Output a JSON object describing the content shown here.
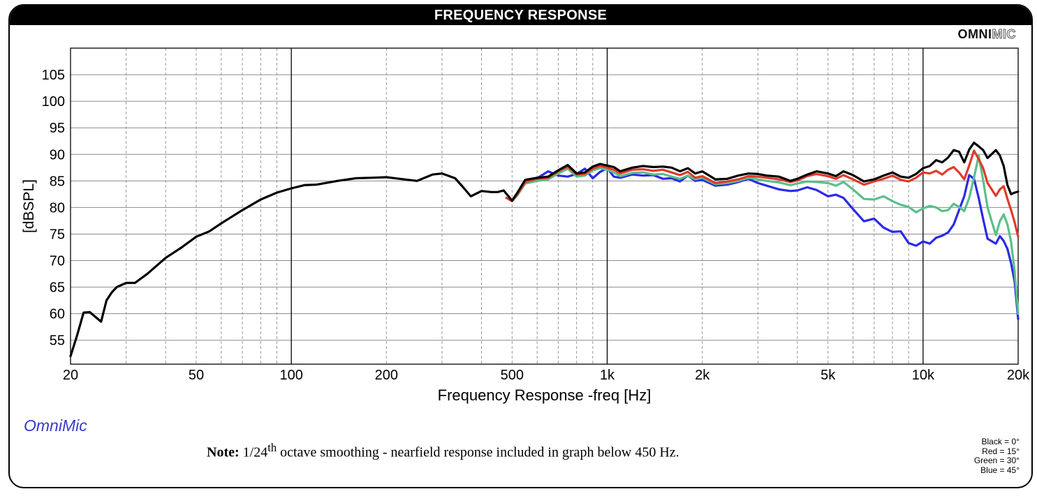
{
  "header": {
    "title": "FREQUENCY RESPONSE"
  },
  "brand": {
    "part1": "OMNI",
    "part2": "MIC"
  },
  "app_name": "OmniMic",
  "note": {
    "label": "Note:",
    "smoothing_pre": "1/24",
    "superscript": "th",
    "text": " octave smoothing - nearfield response included in graph below 450 Hz."
  },
  "legend": [
    {
      "label": "Black = 0°",
      "color": "#000000"
    },
    {
      "label": "Red = 15°",
      "color": "#e03a2a"
    },
    {
      "label": "Green = 30°",
      "color": "#5bbf8a"
    },
    {
      "label": "Blue = 45°",
      "color": "#2a2ae6"
    }
  ],
  "chart_data": {
    "type": "line",
    "xlabel": "Frequency Response -freq [Hz]",
    "ylabel": "[dBSPL]",
    "x_scale": "log",
    "xlim": [
      20,
      20000
    ],
    "ylim": [
      50.5,
      110
    ],
    "x_ticks": [
      20,
      50,
      100,
      200,
      500,
      1000,
      2000,
      5000,
      10000,
      20000
    ],
    "x_tick_labels": [
      "20",
      "50",
      "100",
      "200",
      "500",
      "1k",
      "2k",
      "5k",
      "10k",
      "20k"
    ],
    "y_ticks": [
      55,
      60,
      65,
      70,
      75,
      80,
      85,
      90,
      95,
      100,
      105
    ],
    "y_tick_labels": [
      "55",
      "60",
      "65",
      "70",
      "75",
      "80",
      "85",
      "90",
      "95",
      "100",
      "105"
    ],
    "grid": true,
    "series": [
      {
        "name": "Black = 0°",
        "color": "#000000",
        "x": [
          20,
          21,
          22,
          23,
          25,
          26,
          27,
          28,
          30,
          32,
          35,
          40,
          45,
          50,
          55,
          60,
          70,
          80,
          90,
          100,
          110,
          120,
          140,
          160,
          180,
          200,
          220,
          250,
          280,
          300,
          330,
          350,
          370,
          400,
          430,
          450,
          470,
          500,
          520,
          550,
          600,
          650,
          700,
          750,
          800,
          850,
          900,
          950,
          1000,
          1050,
          1100,
          1200,
          1300,
          1400,
          1500,
          1600,
          1700,
          1800,
          1900,
          2000,
          2200,
          2400,
          2600,
          2800,
          3000,
          3200,
          3500,
          3800,
          4000,
          4300,
          4600,
          5000,
          5300,
          5600,
          6000,
          6500,
          7000,
          7500,
          8000,
          8500,
          9000,
          9500,
          10000,
          10500,
          11000,
          11500,
          12000,
          12500,
          13000,
          13500,
          14000,
          14500,
          15000,
          15500,
          16000,
          17000,
          17500,
          18000,
          18500,
          19000,
          19500,
          20000
        ],
        "y": [
          52,
          56,
          60.2,
          60.3,
          58.5,
          62.5,
          64,
          65,
          65.8,
          65.8,
          67.5,
          70.5,
          72.5,
          74.5,
          75.5,
          77,
          79.5,
          81.5,
          82.8,
          83.6,
          84.2,
          84.3,
          85,
          85.5,
          85.6,
          85.7,
          85.4,
          85,
          86.2,
          86.4,
          85.5,
          83.8,
          82.1,
          83.1,
          82.9,
          82.9,
          83.2,
          81.3,
          82.8,
          85.2,
          85.6,
          85.8,
          87,
          88,
          86.4,
          86.6,
          87.7,
          88.2,
          87.9,
          87.6,
          86.8,
          87.5,
          87.8,
          87.6,
          87.7,
          87.5,
          86.8,
          87.4,
          86.4,
          86.8,
          85.3,
          85.4,
          86,
          86.4,
          86.3,
          86,
          85.8,
          85,
          85.4,
          86.2,
          86.8,
          86.4,
          85.9,
          86.8,
          86.1,
          84.9,
          85.3,
          86,
          86.6,
          85.8,
          85.6,
          86.3,
          87.4,
          87.8,
          88.9,
          88.5,
          89.4,
          90.8,
          90.5,
          88.5,
          90.9,
          92.2,
          91.5,
          90.8,
          89.3,
          90.8,
          89.8,
          87.8,
          84.2,
          82.5,
          82.8,
          83
        ]
      },
      {
        "name": "Red = 15°",
        "color": "#e03a2a",
        "x": [
          480,
          500,
          520,
          550,
          600,
          650,
          700,
          750,
          800,
          850,
          900,
          950,
          1000,
          1050,
          1100,
          1200,
          1300,
          1400,
          1500,
          1600,
          1700,
          1800,
          1900,
          2000,
          2200,
          2400,
          2600,
          2800,
          3000,
          3200,
          3500,
          3800,
          4000,
          4300,
          4600,
          5000,
          5300,
          5600,
          6000,
          6500,
          7000,
          7500,
          8000,
          8500,
          9000,
          9500,
          10000,
          10500,
          11000,
          11500,
          12000,
          12500,
          13000,
          13500,
          14000,
          14500,
          15000,
          15500,
          16000,
          17000,
          17500,
          18000,
          18500,
          19000,
          19500,
          20000
        ],
        "y": [
          81.8,
          81.2,
          82.5,
          84.8,
          85.4,
          85.6,
          86.8,
          87.7,
          86.2,
          86.3,
          87.3,
          87.8,
          87.5,
          87.1,
          86.4,
          87.1,
          87.2,
          86.9,
          87.1,
          86.6,
          86.1,
          86.7,
          85.6,
          85.9,
          84.6,
          84.9,
          85.3,
          85.9,
          85.8,
          85.6,
          85.3,
          84.8,
          85.1,
          85.9,
          86.3,
          85.9,
          85.4,
          86.1,
          85.3,
          84.3,
          84.9,
          85.4,
          86,
          85.2,
          84.9,
          85.6,
          86.6,
          86.4,
          86.9,
          86.2,
          87.1,
          87.6,
          86.6,
          85.3,
          87.9,
          90.7,
          89.1,
          87.4,
          84.6,
          82.2,
          83.4,
          84,
          81.6,
          79.5,
          77.2,
          74.5
        ]
      },
      {
        "name": "Green = 30°",
        "color": "#5bbf8a",
        "x": [
          480,
          500,
          520,
          550,
          600,
          650,
          700,
          750,
          800,
          850,
          900,
          950,
          1000,
          1050,
          1100,
          1200,
          1300,
          1400,
          1500,
          1600,
          1700,
          1800,
          1900,
          2000,
          2200,
          2400,
          2600,
          2800,
          3000,
          3200,
          3500,
          3800,
          4000,
          4300,
          4600,
          5000,
          5300,
          5600,
          6000,
          6500,
          7000,
          7500,
          8000,
          8500,
          9000,
          9500,
          10000,
          10500,
          11000,
          11500,
          12000,
          12500,
          13000,
          13500,
          14000,
          14500,
          15000,
          15500,
          16000,
          17000,
          17500,
          18000,
          18500,
          19000,
          19500,
          20000
        ],
        "y": [
          81.8,
          81.2,
          82.3,
          84.5,
          85,
          85.3,
          86.4,
          87.3,
          85.8,
          86,
          87,
          87.4,
          87.1,
          86.6,
          85.9,
          86.5,
          86.6,
          86.2,
          86.3,
          85.8,
          85.4,
          86,
          85.3,
          85.6,
          84.4,
          84.6,
          85,
          85.6,
          85.3,
          85,
          84.7,
          84.2,
          84.5,
          84.9,
          84.8,
          84.6,
          84.1,
          84.8,
          83.4,
          81.6,
          81.5,
          82.1,
          81.2,
          80.5,
          80.1,
          79.1,
          79.8,
          80.3,
          80,
          79.3,
          79.5,
          80.7,
          80.1,
          79.3,
          81.8,
          85.6,
          89.8,
          85.1,
          80,
          74.8,
          77.4,
          78.7,
          76.8,
          73.5,
          68,
          60
        ]
      },
      {
        "name": "Blue = 45°",
        "color": "#2a2ae6",
        "x": [
          480,
          500,
          520,
          550,
          600,
          650,
          700,
          750,
          800,
          850,
          900,
          950,
          1000,
          1050,
          1100,
          1200,
          1300,
          1400,
          1500,
          1600,
          1700,
          1800,
          1900,
          2000,
          2200,
          2400,
          2600,
          2800,
          3000,
          3200,
          3500,
          3800,
          4000,
          4300,
          4600,
          5000,
          5300,
          5600,
          6000,
          6500,
          7000,
          7500,
          8000,
          8500,
          9000,
          9500,
          10000,
          10500,
          11000,
          11500,
          12000,
          12500,
          13000,
          13500,
          14000,
          14500,
          15000,
          15500,
          16000,
          17000,
          17500,
          18000,
          18500,
          19000,
          19500,
          20000
        ],
        "y": [
          81.8,
          81.2,
          82.5,
          85,
          85.5,
          86.8,
          86,
          85.8,
          86.3,
          87.3,
          85.5,
          86.7,
          87.4,
          85.8,
          85.6,
          86.2,
          86,
          86.1,
          85.4,
          85.5,
          84.9,
          86,
          85,
          85.2,
          84.1,
          84.3,
          84.8,
          85.4,
          84.6,
          84.1,
          83.4,
          83.1,
          83.2,
          83.8,
          83.3,
          82.1,
          82.4,
          81.8,
          79.7,
          77.4,
          77.9,
          76.2,
          75.4,
          75.5,
          73.3,
          72.8,
          73.6,
          73.2,
          74.3,
          74.7,
          75.3,
          76.8,
          79.5,
          82.1,
          86.1,
          85.4,
          81.8,
          77.8,
          74.1,
          73.2,
          74.6,
          73.7,
          72.2,
          69.5,
          66,
          59
        ]
      }
    ]
  }
}
